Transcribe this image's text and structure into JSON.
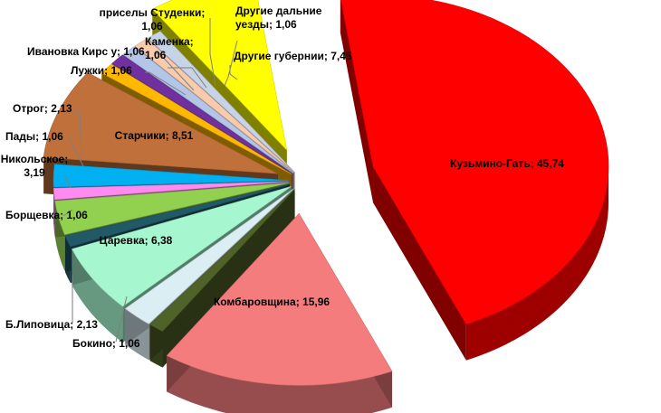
{
  "chart_data": {
    "type": "pie",
    "variant": "3d-exploded",
    "title": "",
    "categories": [
      "Кузьмино-Гать",
      "Комбаровщина",
      "Бокино",
      "Б.Липовица",
      "Царевка",
      "Борщевка",
      "Никольское",
      "Пады",
      "Отрог",
      "Старчики",
      "Лужки",
      "Ивановка Кирс у",
      "Каменка",
      "приселы Студенки",
      "Другие дальние уезды",
      "Другие губернии"
    ],
    "values": [
      45.74,
      15.96,
      1.06,
      2.13,
      6.38,
      1.06,
      3.19,
      1.06,
      2.13,
      8.51,
      1.06,
      1.06,
      1.06,
      1.06,
      1.06,
      7.45
    ],
    "colors": [
      "#ff0000",
      "#f47c7c",
      "#4f6228",
      "#dbeef3",
      "#a6f7cf",
      "#215967",
      "#92d050",
      "#ff8bf1",
      "#00b0f0",
      "#c0703a",
      "#ffb800",
      "#7030a0",
      "#b3c6e7",
      "#f8cbad",
      "#c7d3e6",
      "#ffff00"
    ],
    "labels": [
      [
        "Кузьмино-Гать; 45,74"
      ],
      [
        "Комбаровщина; 15,96"
      ],
      [
        "Бокино; 1,06"
      ],
      [
        "Б.Липовица; 2,13"
      ],
      [
        "Царевка; 6,38"
      ],
      [
        "Борщевка; 1,06"
      ],
      [
        "Никольское;",
        "3,19"
      ],
      [
        "Пады; 1,06"
      ],
      [
        "Отрог; 2,13"
      ],
      [
        "Старчики; 8,51"
      ],
      [
        "Лужки; 1,06"
      ],
      [
        "Ивановка Кирс у; 1,06"
      ],
      [
        "Каменка;",
        "1,06"
      ],
      [
        "приселы Студенки;",
        "1,06"
      ],
      [
        "Другие дальние",
        "уезды; 1,06"
      ],
      [
        "Другие губернии; 7,45"
      ]
    ],
    "legend": "none"
  }
}
